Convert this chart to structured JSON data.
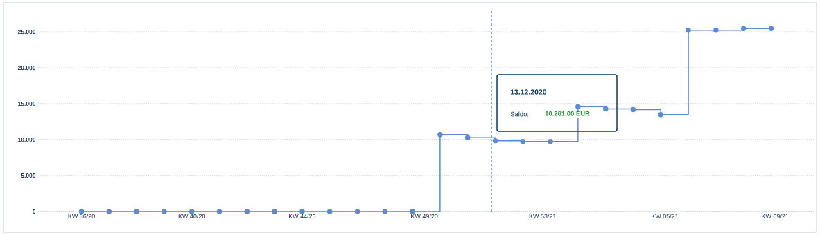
{
  "chart_data": {
    "type": "step",
    "x": [
      "2020-09-06",
      "2020-09-13",
      "2020-09-20",
      "2020-09-27",
      "2020-10-04",
      "2020-10-11",
      "2020-10-18",
      "2020-10-25",
      "2020-11-01",
      "2020-11-08",
      "2020-11-15",
      "2020-11-22",
      "2020-11-29",
      "2020-12-06",
      "2020-12-13",
      "2020-12-20",
      "2020-12-27",
      "2021-01-03",
      "2021-01-10",
      "2021-01-17",
      "2021-01-24",
      "2021-01-31",
      "2021-02-07",
      "2021-02-14",
      "2021-02-21",
      "2021-02-28"
    ],
    "series": [
      {
        "color": "#5b8bd0",
        "values": [
          0,
          0,
          0,
          0,
          0,
          0,
          0,
          0,
          0,
          0,
          0,
          0,
          0,
          10700,
          10261,
          9850,
          9750,
          9750,
          14600,
          14300,
          14200,
          13500,
          25230,
          25230,
          25480,
          25480
        ]
      }
    ],
    "xlim": [
      "2020-08-26",
      "2021-03-11"
    ],
    "xticks": [
      {
        "value": "2020-09-06",
        "label": "KW 36/20"
      },
      {
        "value": "2020-10-04",
        "label": "KW 40/20"
      },
      {
        "value": "2020-11-01",
        "label": "KW 44/20"
      },
      {
        "value": "2020-12-02",
        "label": "KW 49/20"
      },
      {
        "value": "2021-01-01",
        "label": "KW 53/21"
      },
      {
        "value": "2021-02-01",
        "label": "KW 05/21"
      },
      {
        "value": "2021-03-01",
        "label": "KW 09/21"
      }
    ],
    "ylim": [
      0,
      28000
    ],
    "yticks": [
      0,
      {
        "value": 5000,
        "label": "5.000"
      },
      {
        "value": 10000,
        "label": "10.000"
      },
      {
        "value": 15000,
        "label": "15.000"
      },
      {
        "value": 20000,
        "label": "20.000"
      },
      {
        "value": 25000,
        "label": "25.000"
      }
    ],
    "grid": "y",
    "marker": "circle",
    "line_style": "solid",
    "ref_lines": [
      {
        "axis": "x",
        "value": "2020-12-19",
        "color": "#0b3a5e",
        "line_style": "dashed"
      }
    ],
    "annotations": [
      "13.12.2020",
      "Saldo:",
      "10.261,00 EUR"
    ]
  }
}
